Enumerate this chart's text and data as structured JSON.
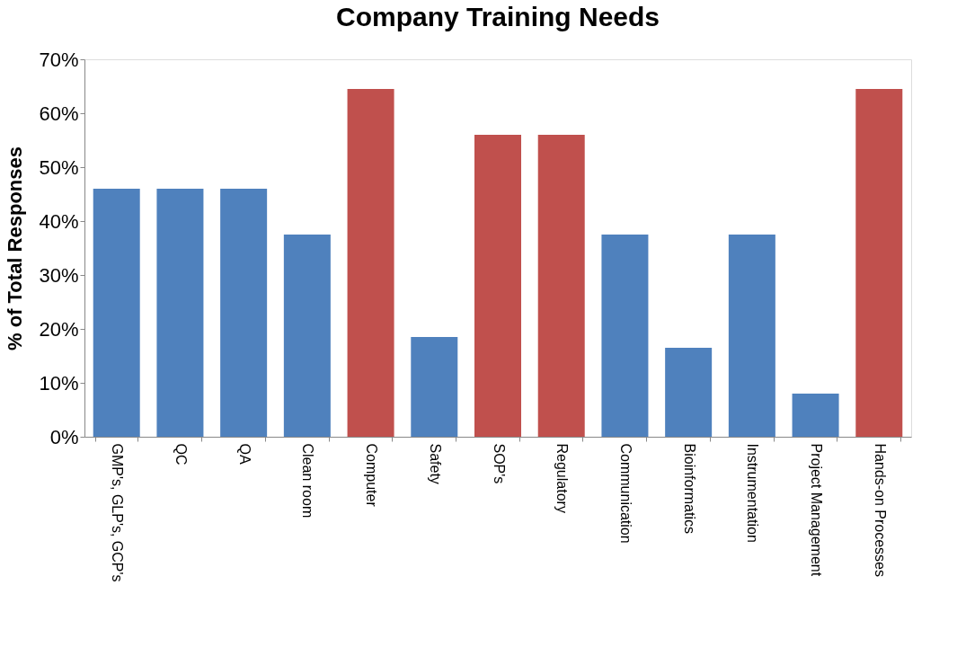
{
  "chart_data": {
    "type": "bar",
    "title": "Company Training Needs",
    "ylabel": "% of Total Responses",
    "categories": [
      "GMP's, GLP's, GCP's",
      "QC",
      "QA",
      "Clean room",
      "Computer",
      "Safety",
      "SOP's",
      "Regulatory",
      "Communication",
      "Bioinformatics",
      "Instrumentation",
      "Project Management",
      "Hands-on Processes"
    ],
    "values": [
      46,
      46,
      46,
      37.5,
      64.5,
      18.5,
      56,
      56,
      37.5,
      16.5,
      37.5,
      8,
      64.5
    ],
    "colors": [
      "#4f81bd",
      "#4f81bd",
      "#4f81bd",
      "#4f81bd",
      "#c0504d",
      "#4f81bd",
      "#c0504d",
      "#c0504d",
      "#4f81bd",
      "#4f81bd",
      "#4f81bd",
      "#4f81bd",
      "#c0504d"
    ],
    "ylim": [
      0,
      70
    ],
    "yticks": [
      {
        "value": 0,
        "label": "0%"
      },
      {
        "value": 10,
        "label": "10%"
      },
      {
        "value": 20,
        "label": "20%"
      },
      {
        "value": 30,
        "label": "30%"
      },
      {
        "value": 40,
        "label": "40%"
      },
      {
        "value": 50,
        "label": "50%"
      },
      {
        "value": 60,
        "label": "60%"
      },
      {
        "value": 70,
        "label": "70%"
      }
    ],
    "grid": false,
    "legend": false
  }
}
